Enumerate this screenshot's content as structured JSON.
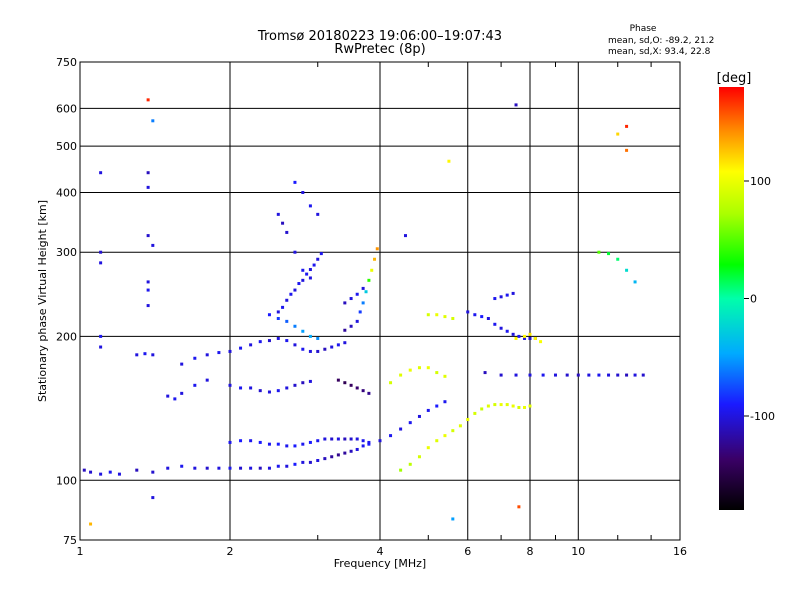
{
  "chart_data": {
    "type": "scatter",
    "title": "Tromsø 20180223 19:06:00–19:07:43",
    "subtitle": "RwPretec (8p)",
    "xlabel": "Frequency [MHz]",
    "ylabel": "Stationary phase Virtual Height [km]",
    "x_scale": "log",
    "y_scale": "log",
    "xlim": [
      1,
      16
    ],
    "ylim": [
      75,
      750
    ],
    "x_ticks": [
      "1",
      "2",
      "4",
      "6",
      "8",
      "10",
      "16"
    ],
    "x_tick_values": [
      1,
      2,
      4,
      6,
      8,
      10,
      16
    ],
    "y_ticks": [
      "75",
      "100",
      "200",
      "300",
      "400",
      "500",
      "600",
      "750"
    ],
    "y_tick_values": [
      75,
      100,
      200,
      300,
      400,
      500,
      600,
      750
    ],
    "grid": true,
    "colorbar": {
      "label": "[deg]",
      "ticks": [
        "100",
        "0",
        "-100"
      ],
      "tick_values": [
        100,
        0,
        -100
      ],
      "range": [
        -180,
        180
      ]
    },
    "stats": {
      "heading": "Phase",
      "line_o": "mean, sd,O: -89.2, 21.2",
      "line_x": "mean, sd,X:  93.4, 22.8"
    },
    "series": [
      {
        "values": [
          [
            1.02,
            105,
            -110
          ],
          [
            1.05,
            104,
            -105
          ],
          [
            1.1,
            103,
            -100
          ],
          [
            1.15,
            104,
            -95
          ],
          [
            1.2,
            103,
            -100
          ],
          [
            1.3,
            105,
            -110
          ],
          [
            1.4,
            104,
            -105
          ],
          [
            1.5,
            106,
            -100
          ],
          [
            1.6,
            107,
            -95
          ],
          [
            1.7,
            106,
            -100
          ],
          [
            1.8,
            106,
            -105
          ],
          [
            1.9,
            106,
            -100
          ],
          [
            2.0,
            106,
            -95
          ],
          [
            2.1,
            106,
            -105
          ],
          [
            2.2,
            106,
            -100
          ],
          [
            2.3,
            106,
            -110
          ],
          [
            2.4,
            106,
            -100
          ],
          [
            2.5,
            107,
            -95
          ],
          [
            2.6,
            107,
            -100
          ],
          [
            2.7,
            108,
            -90
          ],
          [
            2.8,
            109,
            -100
          ],
          [
            2.9,
            109,
            -105
          ],
          [
            3.0,
            110,
            -100
          ],
          [
            3.1,
            111,
            -110
          ],
          [
            3.2,
            112,
            -120
          ],
          [
            3.3,
            113,
            -125
          ],
          [
            3.4,
            114,
            -120
          ],
          [
            3.5,
            115,
            -110
          ],
          [
            3.6,
            116,
            -100
          ],
          [
            3.7,
            118,
            -95
          ],
          [
            3.8,
            119,
            -90
          ],
          [
            2.0,
            120,
            -95
          ],
          [
            2.1,
            121,
            -90
          ],
          [
            2.2,
            121,
            -95
          ],
          [
            2.3,
            120,
            -90
          ],
          [
            2.4,
            119,
            -95
          ],
          [
            2.5,
            119,
            -90
          ],
          [
            2.6,
            118,
            -95
          ],
          [
            2.7,
            118,
            -90
          ],
          [
            2.8,
            119,
            -95
          ],
          [
            2.9,
            120,
            -90
          ],
          [
            3.0,
            121,
            -95
          ],
          [
            3.1,
            122,
            -100
          ],
          [
            3.2,
            122,
            -105
          ],
          [
            3.3,
            122,
            -100
          ],
          [
            3.4,
            122,
            -110
          ],
          [
            3.5,
            122,
            -105
          ],
          [
            3.6,
            122,
            -100
          ],
          [
            3.7,
            121,
            -95
          ],
          [
            3.8,
            120,
            -95
          ],
          [
            4.0,
            121,
            -100
          ],
          [
            4.2,
            124,
            -95
          ],
          [
            4.4,
            128,
            -100
          ],
          [
            4.6,
            132,
            -95
          ],
          [
            4.8,
            136,
            -100
          ],
          [
            5.0,
            140,
            -95
          ],
          [
            5.2,
            143,
            -90
          ],
          [
            5.4,
            146,
            -95
          ],
          [
            4.4,
            105,
            70
          ],
          [
            4.6,
            108,
            80
          ],
          [
            4.8,
            112,
            90
          ],
          [
            5.0,
            117,
            100
          ],
          [
            5.2,
            121,
            95
          ],
          [
            5.4,
            124,
            100
          ],
          [
            5.6,
            127,
            90
          ],
          [
            5.8,
            130,
            95
          ],
          [
            6.0,
            134,
            100
          ],
          [
            6.2,
            138,
            90
          ],
          [
            6.4,
            141,
            85
          ],
          [
            6.6,
            143,
            95
          ],
          [
            6.8,
            144,
            90
          ],
          [
            7.0,
            144,
            100
          ],
          [
            7.2,
            144,
            95
          ],
          [
            7.4,
            143,
            100
          ],
          [
            7.6,
            142,
            90
          ],
          [
            7.8,
            142,
            100
          ],
          [
            8.0,
            143,
            95
          ],
          [
            4.2,
            160,
            90
          ],
          [
            4.4,
            166,
            95
          ],
          [
            4.6,
            170,
            100
          ],
          [
            4.8,
            172,
            95
          ],
          [
            5.0,
            172,
            100
          ],
          [
            5.2,
            168,
            90
          ],
          [
            5.4,
            165,
            95
          ],
          [
            6.5,
            168,
            -110
          ],
          [
            7.0,
            166,
            -105
          ],
          [
            7.5,
            166,
            -100
          ],
          [
            8.0,
            166,
            -100
          ],
          [
            8.5,
            166,
            -95
          ],
          [
            9.0,
            166,
            -100
          ],
          [
            9.5,
            166,
            -105
          ],
          [
            10.0,
            166,
            -110
          ],
          [
            10.5,
            166,
            -100
          ],
          [
            11.0,
            166,
            -95
          ],
          [
            11.5,
            166,
            -100
          ],
          [
            12.0,
            166,
            -105
          ],
          [
            12.5,
            166,
            -110
          ],
          [
            13.0,
            166,
            -100
          ],
          [
            13.5,
            166,
            -105
          ],
          [
            1.6,
            175,
            -100
          ],
          [
            1.7,
            180,
            -95
          ],
          [
            1.8,
            183,
            -100
          ],
          [
            1.9,
            185,
            -95
          ],
          [
            2.0,
            186,
            -100
          ],
          [
            2.1,
            189,
            -95
          ],
          [
            2.2,
            192,
            -100
          ],
          [
            2.3,
            195,
            -95
          ],
          [
            2.4,
            196,
            -105
          ],
          [
            2.5,
            198,
            -100
          ],
          [
            2.6,
            196,
            -95
          ],
          [
            2.7,
            192,
            -100
          ],
          [
            2.8,
            188,
            -95
          ],
          [
            2.9,
            186,
            -100
          ],
          [
            3.0,
            186,
            -105
          ],
          [
            3.1,
            188,
            -110
          ],
          [
            3.2,
            190,
            -100
          ],
          [
            3.3,
            192,
            -95
          ],
          [
            3.4,
            194,
            -100
          ],
          [
            1.3,
            183,
            -100
          ],
          [
            1.35,
            184,
            -95
          ],
          [
            1.4,
            183,
            -100
          ],
          [
            1.5,
            150,
            -100
          ],
          [
            1.55,
            148,
            -95
          ],
          [
            1.6,
            152,
            -100
          ],
          [
            1.7,
            158,
            -95
          ],
          [
            1.8,
            162,
            -100
          ],
          [
            2.0,
            158,
            -100
          ],
          [
            2.1,
            156,
            -95
          ],
          [
            2.2,
            156,
            -100
          ],
          [
            2.3,
            154,
            -105
          ],
          [
            2.4,
            153,
            -100
          ],
          [
            2.5,
            154,
            -95
          ],
          [
            2.6,
            156,
            -100
          ],
          [
            2.7,
            158,
            -105
          ],
          [
            2.8,
            160,
            -110
          ],
          [
            2.9,
            161,
            -100
          ],
          [
            3.3,
            162,
            -140
          ],
          [
            3.4,
            160,
            -145
          ],
          [
            3.5,
            158,
            -140
          ],
          [
            3.6,
            156,
            -135
          ],
          [
            3.7,
            154,
            -130
          ],
          [
            3.8,
            152,
            -125
          ],
          [
            2.5,
            225,
            -100
          ],
          [
            2.55,
            230,
            -95
          ],
          [
            2.6,
            238,
            -100
          ],
          [
            2.65,
            245,
            -95
          ],
          [
            2.7,
            250,
            -100
          ],
          [
            2.75,
            258,
            -95
          ],
          [
            2.8,
            262,
            -100
          ],
          [
            2.85,
            270,
            -95
          ],
          [
            2.9,
            276,
            -100
          ],
          [
            2.95,
            282,
            -95
          ],
          [
            3.0,
            290,
            -100
          ],
          [
            3.05,
            298,
            -95
          ],
          [
            2.5,
            360,
            -100
          ],
          [
            2.55,
            345,
            -110
          ],
          [
            2.6,
            330,
            -105
          ],
          [
            2.7,
            300,
            -100
          ],
          [
            2.8,
            275,
            -95
          ],
          [
            2.9,
            265,
            -100
          ],
          [
            2.4,
            222,
            -90
          ],
          [
            2.5,
            218,
            -80
          ],
          [
            2.6,
            215,
            -70
          ],
          [
            2.7,
            210,
            -60
          ],
          [
            2.8,
            205,
            -50
          ],
          [
            2.9,
            200,
            -45
          ],
          [
            3.0,
            198,
            -55
          ],
          [
            3.4,
            206,
            -120
          ],
          [
            3.5,
            210,
            -110
          ],
          [
            3.6,
            215,
            -100
          ],
          [
            3.65,
            225,
            -80
          ],
          [
            3.7,
            235,
            -60
          ],
          [
            3.75,
            248,
            -30
          ],
          [
            3.8,
            262,
            40
          ],
          [
            3.85,
            275,
            100
          ],
          [
            3.9,
            290,
            130
          ],
          [
            3.95,
            305,
            140
          ],
          [
            3.4,
            235,
            -110
          ],
          [
            3.5,
            240,
            -100
          ],
          [
            3.6,
            245,
            -95
          ],
          [
            3.7,
            252,
            -100
          ],
          [
            5.0,
            222,
            90
          ],
          [
            5.2,
            222,
            100
          ],
          [
            5.4,
            220,
            95
          ],
          [
            5.6,
            218,
            90
          ],
          [
            6.0,
            225,
            -100
          ],
          [
            6.2,
            222,
            -95
          ],
          [
            6.4,
            220,
            -90
          ],
          [
            6.6,
            218,
            -100
          ],
          [
            6.8,
            212,
            -95
          ],
          [
            7.0,
            208,
            -100
          ],
          [
            7.2,
            205,
            -95
          ],
          [
            7.4,
            202,
            -100
          ],
          [
            7.6,
            200,
            -95
          ],
          [
            7.8,
            198,
            -100
          ],
          [
            8.0,
            198,
            -105
          ],
          [
            8.2,
            198,
            -100
          ],
          [
            7.5,
            198,
            110
          ],
          [
            7.8,
            200,
            110
          ],
          [
            8.0,
            202,
            115
          ],
          [
            8.2,
            198,
            110
          ],
          [
            8.4,
            195,
            105
          ],
          [
            6.8,
            240,
            -95
          ],
          [
            7.0,
            242,
            -100
          ],
          [
            7.2,
            244,
            -95
          ],
          [
            7.4,
            246,
            -100
          ],
          [
            1.1,
            440,
            -100
          ],
          [
            1.1,
            300,
            -105
          ],
          [
            1.1,
            285,
            -100
          ],
          [
            1.1,
            200,
            -95
          ],
          [
            1.1,
            190,
            -100
          ],
          [
            1.37,
            625,
            170
          ],
          [
            1.37,
            440,
            -110
          ],
          [
            1.37,
            410,
            -100
          ],
          [
            1.37,
            325,
            -105
          ],
          [
            1.4,
            565,
            -60
          ],
          [
            1.4,
            310,
            -100
          ],
          [
            1.37,
            260,
            -100
          ],
          [
            1.37,
            250,
            -95
          ],
          [
            1.37,
            232,
            -100
          ],
          [
            2.7,
            420,
            -90
          ],
          [
            2.8,
            400,
            -100
          ],
          [
            2.9,
            375,
            -95
          ],
          [
            3.0,
            360,
            -100
          ],
          [
            7.5,
            610,
            -110
          ],
          [
            5.5,
            465,
            110
          ],
          [
            4.5,
            325,
            -100
          ],
          [
            12.5,
            550,
            170
          ],
          [
            12.5,
            490,
            150
          ],
          [
            12.0,
            530,
            120
          ],
          [
            11.0,
            300,
            50
          ],
          [
            11.5,
            298,
            20
          ],
          [
            12.0,
            290,
            10
          ],
          [
            12.5,
            275,
            -20
          ],
          [
            13.0,
            260,
            -40
          ],
          [
            7.6,
            88,
            160
          ],
          [
            5.6,
            83,
            -50
          ],
          [
            1.05,
            81,
            130
          ],
          [
            1.4,
            92,
            -100
          ]
        ]
      }
    ]
  }
}
